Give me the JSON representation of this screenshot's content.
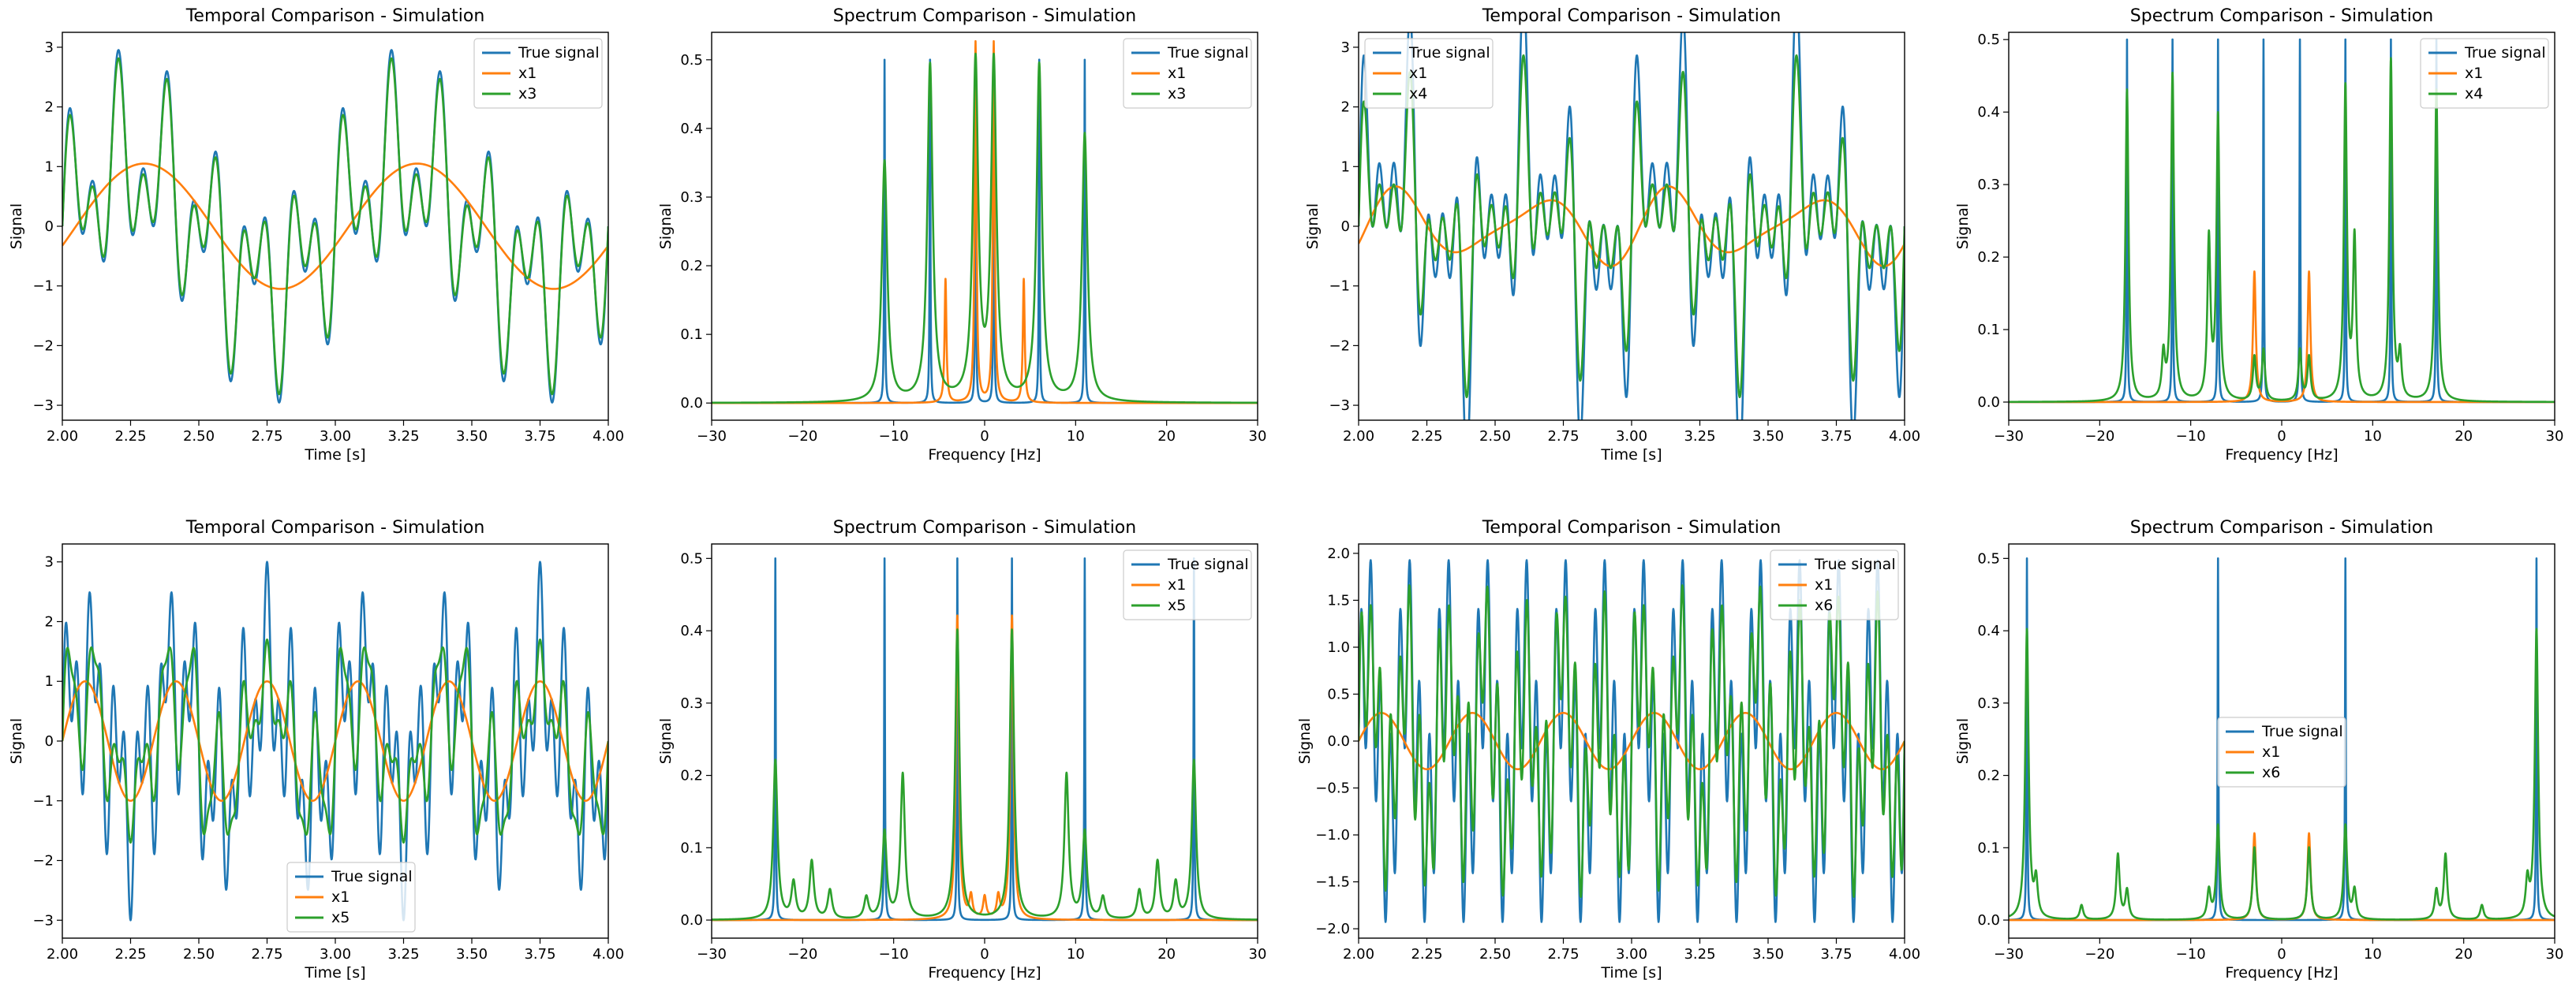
{
  "colors": {
    "true_signal": "#1f77b4",
    "x1": "#ff7f0e",
    "xk": "#2ca02c"
  },
  "chart_data": [
    {
      "type": "line",
      "kind": "temporal",
      "title": "Temporal Comparison - Simulation",
      "xlabel": "Time [s]",
      "ylabel": "Signal",
      "xlim": [
        2.0,
        4.0
      ],
      "ylim": [
        -3.25,
        3.25
      ],
      "xticks": [
        2.0,
        2.25,
        2.5,
        2.75,
        3.0,
        3.25,
        3.5,
        3.75,
        4.0
      ],
      "xtick_labels": [
        "2.00",
        "2.25",
        "2.50",
        "2.75",
        "3.00",
        "3.25",
        "3.50",
        "3.75",
        "4.00"
      ],
      "yticks": [
        -3,
        -2,
        -1,
        0,
        1,
        2,
        3
      ],
      "ytick_labels": [
        "−3",
        "−2",
        "−1",
        "0",
        "1",
        "2",
        "3"
      ],
      "legend_position": "top-right",
      "series": [
        {
          "name": "True signal",
          "role": "true",
          "components": [
            [
              1,
              1.0
            ],
            [
              6,
              1.0
            ],
            [
              11,
              1.0
            ]
          ]
        },
        {
          "name": "x1",
          "role": "x1",
          "components": [
            [
              1,
              1.05
            ]
          ],
          "lag_s": 0.05
        },
        {
          "name": "x3",
          "role": "xk",
          "components": [
            [
              1,
              0.98
            ],
            [
              6,
              0.98
            ],
            [
              11,
              0.9
            ]
          ]
        }
      ]
    },
    {
      "type": "line",
      "kind": "spectrum",
      "title": "Spectrum Comparison - Simulation",
      "xlabel": "Frequency [Hz]",
      "ylabel": "Signal",
      "xlim": [
        -30,
        30
      ],
      "ylim": [
        -0.025,
        0.54
      ],
      "xticks": [
        -30,
        -20,
        -10,
        0,
        10,
        20,
        30
      ],
      "xtick_labels": [
        "−30",
        "−20",
        "−10",
        "0",
        "10",
        "20",
        "30"
      ],
      "yticks": [
        0.0,
        0.1,
        0.2,
        0.3,
        0.4,
        0.5
      ],
      "ytick_labels": [
        "0.0",
        "0.1",
        "0.2",
        "0.3",
        "0.4",
        "0.5"
      ],
      "legend_position": "top-right",
      "series": [
        {
          "name": "True signal",
          "role": "true",
          "peaks": [
            [
              -11,
              0.5
            ],
            [
              -6,
              0.5
            ],
            [
              -1,
              0.5
            ],
            [
              1,
              0.5
            ],
            [
              6,
              0.5
            ],
            [
              11,
              0.5
            ]
          ],
          "width": 0.05
        },
        {
          "name": "x1",
          "role": "x1",
          "peaks": [
            [
              -4.3,
              0.18
            ],
            [
              -1.0,
              0.525
            ],
            [
              1.0,
              0.525
            ],
            [
              4.3,
              0.18
            ]
          ],
          "width": 0.12
        },
        {
          "name": "x3",
          "role": "xk",
          "peaks": [
            [
              -11,
              0.35
            ],
            [
              -6,
              0.49
            ],
            [
              -1,
              0.49
            ],
            [
              1,
              0.49
            ],
            [
              6,
              0.49
            ],
            [
              11,
              0.39
            ]
          ],
          "width": 0.35
        }
      ]
    },
    {
      "type": "line",
      "kind": "temporal",
      "title": "Temporal Comparison - Simulation",
      "xlabel": "Time [s]",
      "ylabel": "Signal",
      "xlim": [
        2.0,
        4.0
      ],
      "ylim": [
        -3.25,
        3.25
      ],
      "xticks": [
        2.0,
        2.25,
        2.5,
        2.75,
        3.0,
        3.25,
        3.5,
        3.75,
        4.0
      ],
      "xtick_labels": [
        "2.00",
        "2.25",
        "2.50",
        "2.75",
        "3.00",
        "3.25",
        "3.50",
        "3.75",
        "4.00"
      ],
      "yticks": [
        -3,
        -2,
        -1,
        0,
        1,
        2,
        3
      ],
      "ytick_labels": [
        "−3",
        "−2",
        "−1",
        "0",
        "1",
        "2",
        "3"
      ],
      "legend_position": "top-left",
      "series": [
        {
          "name": "True signal",
          "role": "true",
          "components": [
            [
              2,
              1.0
            ],
            [
              7,
              1.0
            ],
            [
              12,
              1.0
            ],
            [
              17,
              1.0
            ]
          ]
        },
        {
          "name": "x1",
          "role": "x1",
          "components": [
            [
              2,
              0.5
            ],
            [
              3,
              0.2
            ]
          ],
          "lag_s": 0.03
        },
        {
          "name": "x4",
          "role": "xk",
          "components": [
            [
              2,
              0.7
            ],
            [
              7,
              0.75
            ],
            [
              12,
              0.75
            ],
            [
              17,
              0.7
            ]
          ]
        }
      ]
    },
    {
      "type": "line",
      "kind": "spectrum",
      "title": "Spectrum Comparison - Simulation",
      "xlabel": "Frequency [Hz]",
      "ylabel": "Signal",
      "xlim": [
        -30,
        30
      ],
      "ylim": [
        -0.025,
        0.51
      ],
      "xticks": [
        -30,
        -20,
        -10,
        0,
        10,
        20,
        30
      ],
      "xtick_labels": [
        "−30",
        "−20",
        "−10",
        "0",
        "10",
        "20",
        "30"
      ],
      "yticks": [
        0.0,
        0.1,
        0.2,
        0.3,
        0.4,
        0.5
      ],
      "ytick_labels": [
        "0.0",
        "0.1",
        "0.2",
        "0.3",
        "0.4",
        "0.5"
      ],
      "legend_position": "top-right",
      "series": [
        {
          "name": "True signal",
          "role": "true",
          "peaks": [
            [
              -17,
              0.5
            ],
            [
              -12,
              0.5
            ],
            [
              -7,
              0.5
            ],
            [
              -2,
              0.5
            ],
            [
              2,
              0.5
            ],
            [
              7,
              0.5
            ],
            [
              12,
              0.5
            ],
            [
              17,
              0.5
            ]
          ],
          "width": 0.05
        },
        {
          "name": "x1",
          "role": "x1",
          "peaks": [
            [
              -3,
              0.18
            ],
            [
              3,
              0.18
            ]
          ],
          "width": 0.18
        },
        {
          "name": "x4",
          "role": "xk",
          "peaks": [
            [
              -17,
              0.43
            ],
            [
              -13,
              0.06
            ],
            [
              -12,
              0.45
            ],
            [
              -8,
              0.22
            ],
            [
              -7,
              0.39
            ],
            [
              -3,
              0.06
            ],
            [
              -2,
              0.07
            ],
            [
              2,
              0.07
            ],
            [
              3,
              0.06
            ],
            [
              7,
              0.43
            ],
            [
              8,
              0.22
            ],
            [
              12,
              0.47
            ],
            [
              13,
              0.06
            ],
            [
              17,
              0.43
            ]
          ],
          "width": 0.2
        }
      ]
    },
    {
      "type": "line",
      "kind": "temporal",
      "title": "Temporal Comparison - Simulation",
      "xlabel": "Time [s]",
      "ylabel": "Signal",
      "xlim": [
        2.0,
        4.0
      ],
      "ylim": [
        -3.3,
        3.3
      ],
      "xticks": [
        2.0,
        2.25,
        2.5,
        2.75,
        3.0,
        3.25,
        3.5,
        3.75,
        4.0
      ],
      "xtick_labels": [
        "2.00",
        "2.25",
        "2.50",
        "2.75",
        "3.00",
        "3.25",
        "3.50",
        "3.75",
        "4.00"
      ],
      "yticks": [
        -3,
        -2,
        -1,
        0,
        1,
        2,
        3
      ],
      "ytick_labels": [
        "−3",
        "−2",
        "−1",
        "0",
        "1",
        "2",
        "3"
      ],
      "legend_position": "bottom-center",
      "series": [
        {
          "name": "True signal",
          "role": "true",
          "components": [
            [
              3,
              1.0
            ],
            [
              11,
              1.0
            ],
            [
              23,
              1.0
            ]
          ]
        },
        {
          "name": "x1",
          "role": "x1",
          "components": [
            [
              3,
              1.0
            ]
          ],
          "lag_s": 0.0
        },
        {
          "name": "x5",
          "role": "xk",
          "components": [
            [
              3,
              0.9
            ],
            [
              11,
              0.85
            ],
            [
              9,
              0.35
            ],
            [
              23,
              0.3
            ]
          ]
        }
      ]
    },
    {
      "type": "line",
      "kind": "spectrum",
      "title": "Spectrum Comparison - Simulation",
      "xlabel": "Frequency [Hz]",
      "ylabel": "Signal",
      "xlim": [
        -30,
        30
      ],
      "ylim": [
        -0.025,
        0.52
      ],
      "xticks": [
        -30,
        -20,
        -10,
        0,
        10,
        20,
        30
      ],
      "xtick_labels": [
        "−30",
        "−20",
        "−10",
        "0",
        "10",
        "20",
        "30"
      ],
      "yticks": [
        0.0,
        0.1,
        0.2,
        0.3,
        0.4,
        0.5
      ],
      "ytick_labels": [
        "0.0",
        "0.1",
        "0.2",
        "0.3",
        "0.4",
        "0.5"
      ],
      "legend_position": "top-right",
      "series": [
        {
          "name": "True signal",
          "role": "true",
          "peaks": [
            [
              -23,
              0.5
            ],
            [
              -11,
              0.5
            ],
            [
              -3,
              0.5
            ],
            [
              3,
              0.5
            ],
            [
              11,
              0.5
            ],
            [
              23,
              0.5
            ]
          ],
          "width": 0.05
        },
        {
          "name": "x1",
          "role": "x1",
          "peaks": [
            [
              -3,
              0.42
            ],
            [
              -1.5,
              0.03
            ],
            [
              0,
              0.03
            ],
            [
              1.5,
              0.03
            ],
            [
              3,
              0.42
            ]
          ],
          "width": 0.2
        },
        {
          "name": "x5",
          "role": "xk",
          "peaks": [
            [
              -23,
              0.22
            ],
            [
              -21,
              0.05
            ],
            [
              -19,
              0.08
            ],
            [
              -17,
              0.04
            ],
            [
              -13,
              0.03
            ],
            [
              -11,
              0.12
            ],
            [
              -9,
              0.2
            ],
            [
              -3,
              0.4
            ],
            [
              3,
              0.4
            ],
            [
              9,
              0.2
            ],
            [
              11,
              0.12
            ],
            [
              13,
              0.03
            ],
            [
              17,
              0.04
            ],
            [
              19,
              0.08
            ],
            [
              21,
              0.05
            ],
            [
              23,
              0.22
            ]
          ],
          "width": 0.28
        }
      ]
    },
    {
      "type": "line",
      "kind": "temporal",
      "title": "Temporal Comparison - Simulation",
      "xlabel": "Time [s]",
      "ylabel": "Signal",
      "xlim": [
        2.0,
        4.0
      ],
      "ylim": [
        -2.1,
        2.1
      ],
      "xticks": [
        2.0,
        2.25,
        2.5,
        2.75,
        3.0,
        3.25,
        3.5,
        3.75,
        4.0
      ],
      "xtick_labels": [
        "2.00",
        "2.25",
        "2.50",
        "2.75",
        "3.00",
        "3.25",
        "3.50",
        "3.75",
        "4.00"
      ],
      "yticks": [
        -2.0,
        -1.5,
        -1.0,
        -0.5,
        0.0,
        0.5,
        1.0,
        1.5,
        2.0
      ],
      "ytick_labels": [
        "−2.0",
        "−1.5",
        "−1.0",
        "−0.5",
        "0.0",
        "0.5",
        "1.0",
        "1.5",
        "2.0"
      ],
      "legend_position": "top-right",
      "series": [
        {
          "name": "True signal",
          "role": "true",
          "components": [
            [
              7,
              1.0
            ],
            [
              28,
              1.0
            ]
          ]
        },
        {
          "name": "x1",
          "role": "x1",
          "components": [
            [
              3,
              0.3
            ]
          ],
          "lag_s": 0.0
        },
        {
          "name": "x6",
          "role": "xk",
          "components": [
            [
              7,
              0.85
            ],
            [
              28,
              0.75
            ],
            [
              18,
              0.25
            ],
            [
              3,
              0.2
            ]
          ]
        }
      ]
    },
    {
      "type": "line",
      "kind": "spectrum",
      "title": "Spectrum Comparison - Simulation",
      "xlabel": "Frequency [Hz]",
      "ylabel": "Signal",
      "xlim": [
        -30,
        30
      ],
      "ylim": [
        -0.025,
        0.52
      ],
      "xticks": [
        -30,
        -20,
        -10,
        0,
        10,
        20,
        30
      ],
      "xtick_labels": [
        "−30",
        "−20",
        "−10",
        "0",
        "10",
        "20",
        "30"
      ],
      "yticks": [
        0.0,
        0.1,
        0.2,
        0.3,
        0.4,
        0.5
      ],
      "ytick_labels": [
        "0.0",
        "0.1",
        "0.2",
        "0.3",
        "0.4",
        "0.5"
      ],
      "legend_position": "center",
      "series": [
        {
          "name": "True signal",
          "role": "true",
          "peaks": [
            [
              -28,
              0.5
            ],
            [
              -7,
              0.5
            ],
            [
              7,
              0.5
            ],
            [
              28,
              0.5
            ]
          ],
          "width": 0.05
        },
        {
          "name": "x1",
          "role": "x1",
          "peaks": [
            [
              -3,
              0.12
            ],
            [
              3,
              0.12
            ]
          ],
          "width": 0.2
        },
        {
          "name": "x6",
          "role": "xk",
          "peaks": [
            [
              -28,
              0.4
            ],
            [
              -27,
              0.05
            ],
            [
              -22,
              0.02
            ],
            [
              -18,
              0.09
            ],
            [
              -17,
              0.04
            ],
            [
              -8,
              0.04
            ],
            [
              -7,
              0.13
            ],
            [
              -3,
              0.1
            ],
            [
              3,
              0.1
            ],
            [
              7,
              0.13
            ],
            [
              8,
              0.04
            ],
            [
              17,
              0.04
            ],
            [
              18,
              0.09
            ],
            [
              22,
              0.02
            ],
            [
              27,
              0.05
            ],
            [
              28,
              0.4
            ]
          ],
          "width": 0.22
        }
      ]
    }
  ]
}
